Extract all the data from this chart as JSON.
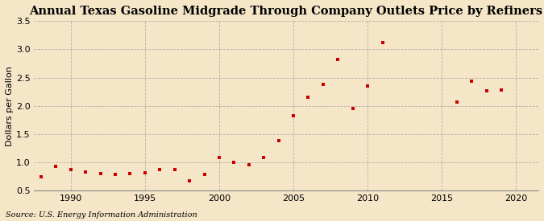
{
  "title": "Annual Texas Gasoline Midgrade Through Company Outlets Price by Refiners",
  "ylabel": "Dollars per Gallon",
  "source": "Source: U.S. Energy Information Administration",
  "background_color": "#f5e6c8",
  "plot_bg_color": "#f5e6c8",
  "marker_color": "#cc0000",
  "years": [
    1988,
    1989,
    1990,
    1991,
    1992,
    1993,
    1994,
    1995,
    1996,
    1997,
    1998,
    1999,
    2000,
    2001,
    2002,
    2003,
    2004,
    2005,
    2006,
    2007,
    2008,
    2009,
    2010,
    2011,
    2016,
    2017,
    2018,
    2019
  ],
  "values": [
    0.75,
    0.93,
    0.87,
    0.83,
    0.8,
    0.79,
    0.8,
    0.82,
    0.88,
    0.87,
    0.68,
    0.79,
    1.09,
    1.0,
    0.96,
    1.09,
    1.39,
    1.82,
    2.16,
    2.38,
    2.82,
    1.95,
    2.35,
    3.12,
    2.07,
    2.44,
    2.27,
    2.28
  ],
  "xlim": [
    1987.5,
    2021.5
  ],
  "ylim": [
    0.5,
    3.5
  ],
  "xticks": [
    1990,
    1995,
    2000,
    2005,
    2010,
    2015,
    2020
  ],
  "yticks": [
    0.5,
    1.0,
    1.5,
    2.0,
    2.5,
    3.0,
    3.5
  ],
  "grid_color": "#aaaaaa",
  "title_fontsize": 10.5,
  "label_fontsize": 8,
  "tick_fontsize": 8,
  "source_fontsize": 7
}
